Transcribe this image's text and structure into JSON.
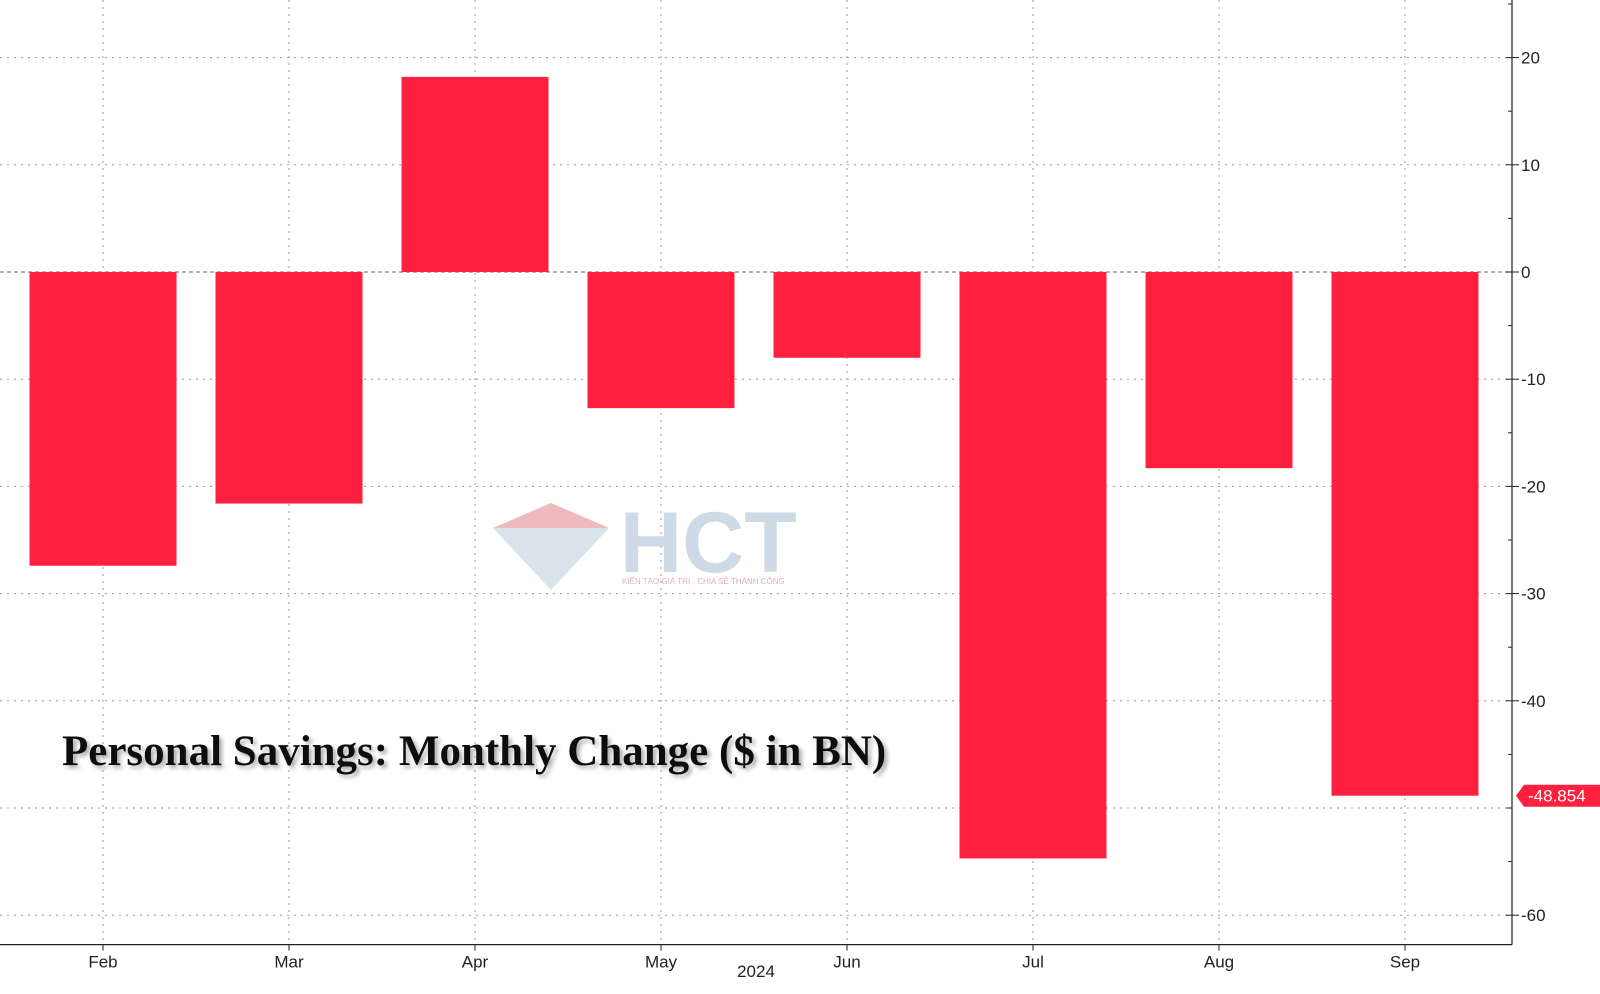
{
  "chart_data": {
    "type": "bar",
    "title": "Personal Savings: Monthly Change ($ in BN)",
    "xlabel": "2024",
    "ylabel": "",
    "categories": [
      "Feb",
      "Mar",
      "Apr",
      "May",
      "Jun",
      "Jul",
      "Aug",
      "Sep"
    ],
    "values": [
      -27.4,
      -21.6,
      18.2,
      -12.7,
      -8.0,
      -54.7,
      -18.3,
      -48.854
    ],
    "ylim": [
      -62,
      25
    ],
    "yticks": [
      -60,
      -40,
      -30,
      -20,
      -10,
      0,
      10,
      20
    ],
    "grid": true,
    "bar_color": "#ff2040",
    "y_axis_side": "right",
    "last_value_label": "-48.854",
    "last_value_color": "#ff2040"
  },
  "watermark": {
    "text": "HCT",
    "tagline": "KIẾN TẠO GIÁ TRỊ - CHIA SẺ THÀNH CÔNG",
    "colors": [
      "#e9a8ae",
      "#c9d6e4"
    ]
  }
}
